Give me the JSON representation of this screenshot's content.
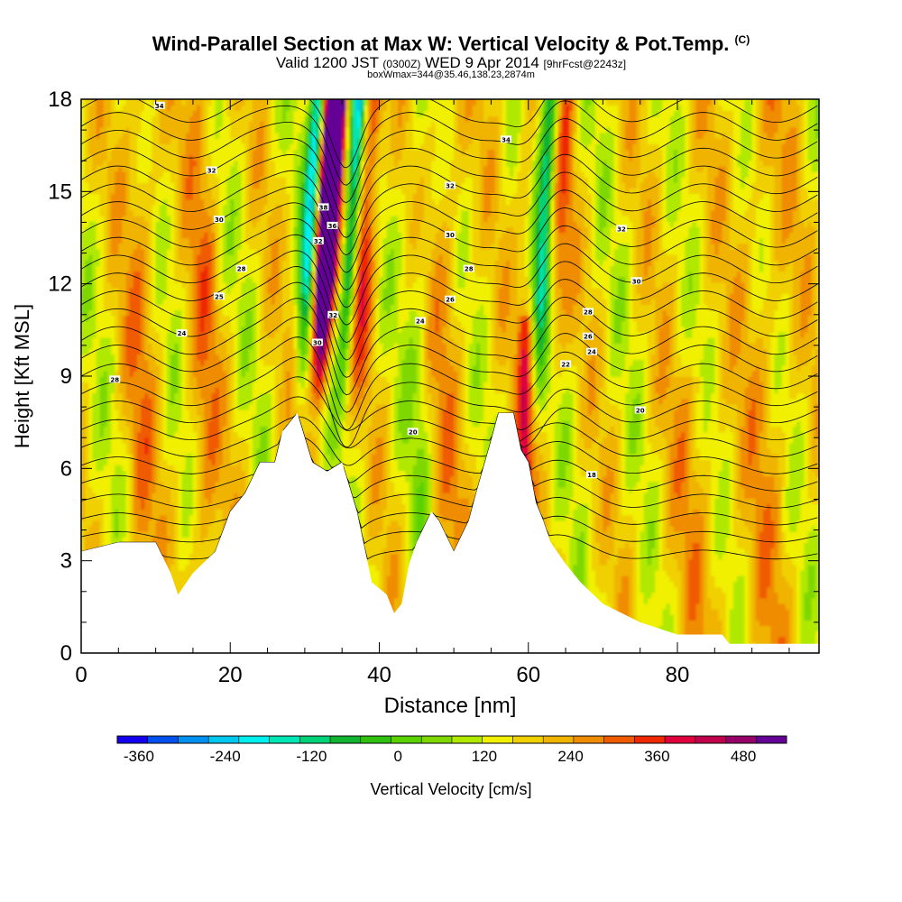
{
  "titles": {
    "main": "Wind-Parallel Section at Max W: Vertical Velocity & Pot.Temp.",
    "copyright": "(C)",
    "valid_a": "Valid 1200 JST",
    "valid_z": "(0300Z)",
    "valid_b": "WED 9 Apr 2014",
    "forecast": "[9hrFcst@2243z]",
    "box": "boxWmax=344@35.46,138.23,2874m"
  },
  "colors": {
    "shading": [
      "#1400f0",
      "#0050f0",
      "#0090f0",
      "#00c8f0",
      "#00f0f0",
      "#00e6b4",
      "#00d278",
      "#10b430",
      "#30c010",
      "#5ad200",
      "#7ed800",
      "#b0e800",
      "#f0f000",
      "#f0d000",
      "#f0b400",
      "#f08c00",
      "#f05a00",
      "#f02800",
      "#e0003c",
      "#c0004a",
      "#960068",
      "#640096"
    ],
    "contour": "#000000"
  },
  "chart_data": {
    "type": "heatmap",
    "xlabel": "Distance [nm]",
    "ylabel": "Height [Kft MSL]",
    "xlim": [
      0,
      99
    ],
    "ylim": [
      0,
      18
    ],
    "x_ticks": [
      "0",
      "20",
      "40",
      "60",
      "80"
    ],
    "y_ticks": [
      "0",
      "3",
      "6",
      "9",
      "12",
      "15",
      "18"
    ],
    "colorbar": {
      "label": "Vertical Velocity [cm/s]",
      "tick_labels": [
        "-360",
        "-240",
        "-120",
        "0",
        "120",
        "240",
        "360",
        "480"
      ],
      "range": [
        -390,
        540
      ],
      "interval": 30
    },
    "terrain": [
      [
        0,
        3.3
      ],
      [
        5,
        3.6
      ],
      [
        10,
        3.6
      ],
      [
        12,
        2.6
      ],
      [
        13,
        1.9
      ],
      [
        15,
        2.6
      ],
      [
        18,
        3.3
      ],
      [
        20,
        4.6
      ],
      [
        22,
        5.2
      ],
      [
        24,
        6.2
      ],
      [
        26,
        6.2
      ],
      [
        27,
        7.2
      ],
      [
        29,
        7.8
      ],
      [
        31,
        6.2
      ],
      [
        33,
        5.9
      ],
      [
        35,
        6.2
      ],
      [
        37,
        4.6
      ],
      [
        39,
        2.3
      ],
      [
        41,
        1.9
      ],
      [
        42,
        1.3
      ],
      [
        43,
        1.6
      ],
      [
        44,
        2.9
      ],
      [
        45,
        3.6
      ],
      [
        47,
        4.6
      ],
      [
        48,
        4.3
      ],
      [
        50,
        3.3
      ],
      [
        52,
        4.3
      ],
      [
        53,
        5.2
      ],
      [
        55,
        6.9
      ],
      [
        56,
        7.8
      ],
      [
        58,
        7.8
      ],
      [
        59,
        6.6
      ],
      [
        60,
        6.2
      ],
      [
        61,
        4.9
      ],
      [
        62,
        4.3
      ],
      [
        63,
        3.6
      ],
      [
        65,
        2.9
      ],
      [
        67,
        2.3
      ],
      [
        70,
        1.6
      ],
      [
        75,
        1.0
      ],
      [
        80,
        0.6
      ],
      [
        86,
        0.6
      ],
      [
        87,
        0.3
      ],
      [
        99,
        0.3
      ]
    ],
    "contour_labels": [
      {
        "x": 10.5,
        "y": 17.8,
        "text": "34"
      },
      {
        "x": 17.5,
        "y": 15.7,
        "text": "32"
      },
      {
        "x": 18.5,
        "y": 14.1,
        "text": "30"
      },
      {
        "x": 21.5,
        "y": 12.5,
        "text": "28"
      },
      {
        "x": 18.5,
        "y": 11.6,
        "text": "25"
      },
      {
        "x": 13.5,
        "y": 10.4,
        "text": "24"
      },
      {
        "x": 4.5,
        "y": 8.9,
        "text": "28"
      },
      {
        "x": 32.5,
        "y": 14.5,
        "text": "38"
      },
      {
        "x": 33.7,
        "y": 13.9,
        "text": "36"
      },
      {
        "x": 31.8,
        "y": 13.4,
        "text": "32"
      },
      {
        "x": 33.8,
        "y": 11.0,
        "text": "32"
      },
      {
        "x": 31.7,
        "y": 10.1,
        "text": "30"
      },
      {
        "x": 49.5,
        "y": 15.2,
        "text": "32"
      },
      {
        "x": 49.5,
        "y": 13.6,
        "text": "30"
      },
      {
        "x": 52.0,
        "y": 12.5,
        "text": "28"
      },
      {
        "x": 49.5,
        "y": 11.5,
        "text": "26"
      },
      {
        "x": 45.5,
        "y": 10.8,
        "text": "24"
      },
      {
        "x": 44.5,
        "y": 7.2,
        "text": "20"
      },
      {
        "x": 57.0,
        "y": 16.7,
        "text": "34"
      },
      {
        "x": 72.5,
        "y": 13.8,
        "text": "32"
      },
      {
        "x": 74.5,
        "y": 12.1,
        "text": "30"
      },
      {
        "x": 68.0,
        "y": 11.1,
        "text": "28"
      },
      {
        "x": 68.0,
        "y": 10.3,
        "text": "26"
      },
      {
        "x": 68.5,
        "y": 9.8,
        "text": "24"
      },
      {
        "x": 65.0,
        "y": 9.4,
        "text": "22"
      },
      {
        "x": 75.0,
        "y": 7.9,
        "text": "20"
      },
      {
        "x": 68.5,
        "y": 5.8,
        "text": "18"
      }
    ]
  }
}
